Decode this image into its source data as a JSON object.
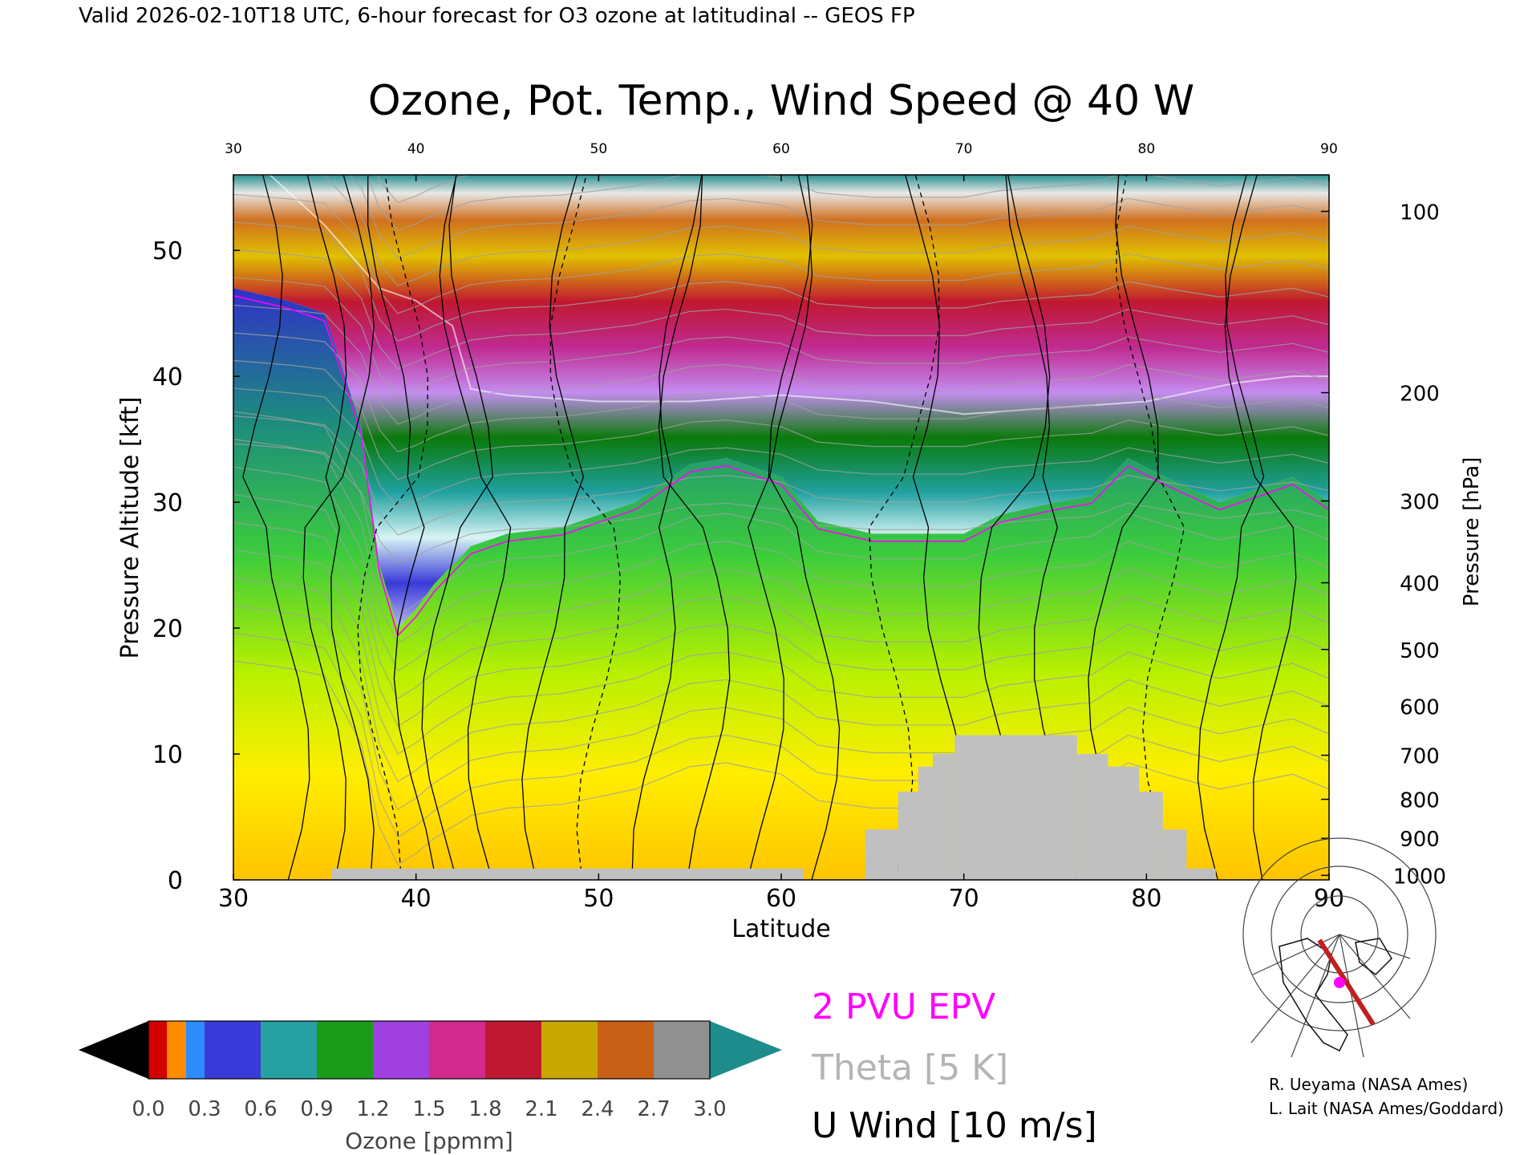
{
  "header": {
    "valid_line": "Valid 2026-02-10T18 UTC, 6-hour forecast for O3 ozone at latitudinal -- GEOS FP"
  },
  "chart_data": {
    "type": "heatmap",
    "title": "Ozone, Pot. Temp., Wind Speed @ 40 W",
    "xlabel": "Latitude",
    "ylabel": "Pressure Altitude [kft]",
    "y2label": "Pressure [hPa]",
    "xlim": [
      30,
      90
    ],
    "ylim": [
      0,
      56
    ],
    "x_ticks": [
      "30",
      "40",
      "50",
      "60",
      "70",
      "80",
      "90"
    ],
    "y_ticks": [
      "0",
      "10",
      "20",
      "30",
      "40",
      "50"
    ],
    "pressure_ticks": [
      {
        "hpa": "1000",
        "kft": 0.36
      },
      {
        "hpa": "900",
        "kft": 3.3
      },
      {
        "hpa": "800",
        "kft": 6.4
      },
      {
        "hpa": "700",
        "kft": 9.9
      },
      {
        "hpa": "600",
        "kft": 13.8
      },
      {
        "hpa": "500",
        "kft": 18.3
      },
      {
        "hpa": "400",
        "kft": 23.6
      },
      {
        "hpa": "300",
        "kft": 30.1
      },
      {
        "hpa": "200",
        "kft": 38.7
      },
      {
        "hpa": "100",
        "kft": 53.1
      }
    ],
    "tropopause_kft": [
      [
        30,
        47
      ],
      [
        33,
        46
      ],
      [
        35,
        45
      ],
      [
        37,
        36
      ],
      [
        38,
        25
      ],
      [
        39,
        20
      ],
      [
        40,
        21.5
      ],
      [
        41,
        23.5
      ],
      [
        42,
        25
      ],
      [
        43,
        26.5
      ],
      [
        45,
        27.5
      ],
      [
        48,
        28
      ],
      [
        50,
        29
      ],
      [
        52,
        30
      ],
      [
        55,
        33
      ],
      [
        57,
        33.5
      ],
      [
        60,
        32
      ],
      [
        62,
        28.5
      ],
      [
        65,
        27.5
      ],
      [
        70,
        27.5
      ],
      [
        72,
        29
      ],
      [
        75,
        30
      ],
      [
        77,
        30.5
      ],
      [
        79,
        33.5
      ],
      [
        81,
        32
      ],
      [
        84,
        30
      ],
      [
        86,
        31
      ],
      [
        88,
        32
      ],
      [
        90,
        30
      ]
    ],
    "ozone_max_surface_kft": [
      [
        30,
        56
      ],
      [
        32,
        56
      ],
      [
        35,
        52
      ],
      [
        38,
        47
      ],
      [
        40,
        46
      ],
      [
        42,
        44
      ],
      [
        43,
        39
      ],
      [
        45,
        38.5
      ],
      [
        50,
        38
      ],
      [
        55,
        38
      ],
      [
        60,
        38.5
      ],
      [
        65,
        38
      ],
      [
        70,
        37
      ],
      [
        75,
        37.5
      ],
      [
        80,
        38
      ],
      [
        85,
        39.5
      ],
      [
        88,
        40
      ],
      [
        90,
        40
      ]
    ],
    "terrain": [
      {
        "lat_from": 35.4,
        "lat_to": 61.2,
        "top_kft": 0.9
      },
      {
        "lat_from": 64.6,
        "lat_to": 66.4,
        "top_kft": 4
      },
      {
        "lat_from": 66.4,
        "lat_to": 67.5,
        "top_kft": 7
      },
      {
        "lat_from": 67.5,
        "lat_to": 68.3,
        "top_kft": 9
      },
      {
        "lat_from": 68.3,
        "lat_to": 69.5,
        "top_kft": 10
      },
      {
        "lat_from": 69.5,
        "lat_to": 76.2,
        "top_kft": 11.5
      },
      {
        "lat_from": 76.2,
        "lat_to": 77.9,
        "top_kft": 10
      },
      {
        "lat_from": 77.9,
        "lat_to": 79.6,
        "top_kft": 9
      },
      {
        "lat_from": 79.6,
        "lat_to": 80.9,
        "top_kft": 7
      },
      {
        "lat_from": 80.9,
        "lat_to": 82.2,
        "top_kft": 4
      },
      {
        "lat_from": 82.2,
        "lat_to": 83.8,
        "top_kft": 0.9
      }
    ],
    "colorbar": {
      "label": "Ozone [ppmm]",
      "ticks": [
        "0.0",
        "0.3",
        "0.6",
        "0.9",
        "1.2",
        "1.5",
        "1.8",
        "2.1",
        "2.4",
        "2.7",
        "3.0"
      ],
      "range": [
        0,
        3
      ],
      "under_color": "#000000",
      "over_color": "#1e8c8c",
      "bands": [
        {
          "from": 0.0,
          "to": 0.1,
          "color": "#d40000"
        },
        {
          "from": 0.1,
          "to": 0.2,
          "color": "#ff8c00"
        },
        {
          "from": 0.2,
          "to": 0.3,
          "color": "#2d8cff"
        },
        {
          "from": 0.3,
          "to": 0.6,
          "color": "#3a3ad8"
        },
        {
          "from": 0.6,
          "to": 0.9,
          "color": "#26a0a0"
        },
        {
          "from": 0.9,
          "to": 1.2,
          "color": "#1a9c1a"
        },
        {
          "from": 1.2,
          "to": 1.5,
          "color": "#a040e0"
        },
        {
          "from": 1.5,
          "to": 1.8,
          "color": "#d02a8c"
        },
        {
          "from": 1.8,
          "to": 2.1,
          "color": "#c01830"
        },
        {
          "from": 2.1,
          "to": 2.4,
          "color": "#c8a800"
        },
        {
          "from": 2.4,
          "to": 2.7,
          "color": "#c86018"
        },
        {
          "from": 2.7,
          "to": 3.0,
          "color": "#909090"
        }
      ]
    },
    "legend": [
      {
        "label": "2 PVU EPV",
        "color": "#ff00ff"
      },
      {
        "label": "Theta [5 K]",
        "color": "#b4b4b4"
      },
      {
        "label": "U Wind [10 m/s]",
        "color": "#000000"
      }
    ]
  },
  "credits": {
    "line1": "R. Ueyama (NASA Ames)",
    "line2": "L. Lait (NASA Ames/Goddard)"
  },
  "colors": {
    "terrain": "#c0c0c0",
    "epv": "#ff00ff",
    "theta": "#a0a0a0",
    "wind": "#000000",
    "track": "#c02020"
  }
}
